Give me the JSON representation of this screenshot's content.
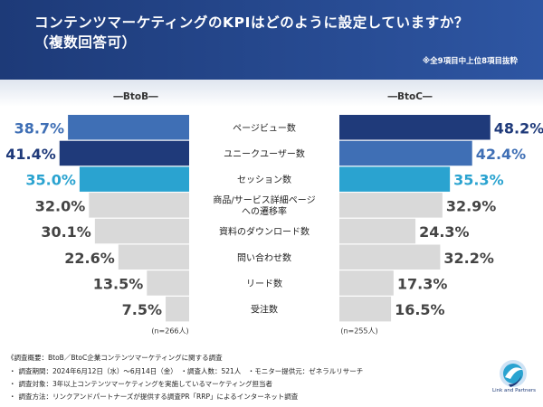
{
  "header": {
    "title_line1": "コンテンツマーケティングのKPIはどのように設定していますか？",
    "title_line2": "（複数回答可）",
    "note": "※全9項目中上位8項目抜粋"
  },
  "groups": {
    "btob_label": "―BtoB―",
    "btoc_label": "―BtoC―"
  },
  "chart_data": {
    "type": "bar",
    "orientation": "horizontal",
    "categories": [
      "ページビュー数",
      "ユニークユーザー数",
      "セッション数",
      "商品/サービス詳細ページへの遷移率",
      "資料のダウンロード数",
      "問い合わせ数",
      "リード数",
      "受注数"
    ],
    "category_lines": [
      [
        "ページビュー数"
      ],
      [
        "ユニークユーザー数"
      ],
      [
        "セッション数"
      ],
      [
        "商品/サービス詳細ページ",
        "への遷移率"
      ],
      [
        "資料のダウンロード数"
      ],
      [
        "問い合わせ数"
      ],
      [
        "リード数"
      ],
      [
        "受注数"
      ]
    ],
    "series": [
      {
        "name": "BtoB",
        "values": [
          38.7,
          41.4,
          35.0,
          32.0,
          30.1,
          22.6,
          13.5,
          7.5
        ],
        "labels": [
          "38.7%",
          "41.4%",
          "35.0%",
          "32.0%",
          "30.1%",
          "22.6%",
          "13.5%",
          "7.5%"
        ],
        "n_label": "(n=266人)"
      },
      {
        "name": "BtoC",
        "values": [
          48.2,
          42.4,
          35.3,
          32.9,
          24.3,
          32.2,
          17.3,
          16.5
        ],
        "labels": [
          "48.2%",
          "42.4%",
          "35.3%",
          "32.9%",
          "24.3%",
          "32.2%",
          "17.3%",
          "16.5%"
        ],
        "n_label": "(n=255人)"
      }
    ],
    "colors": {
      "rank1": "#1f3a7a",
      "rank2": "#3f6fb5",
      "rank3": "#2aa3d0",
      "other": "#d9d9d9",
      "other_label": "#444444"
    }
  },
  "footer": {
    "source": "《調査概要：BtoB／BtoC企業コンテンツマーケティングに関する調査",
    "lines": [
      "調査期間：2024年6月12日（水）〜6月14日（金）　・調査人数：521人　・モニター提供元：ゼネラルリサーチ",
      "調査対象：3年以上コンテンツマーケティングを実施しているマーケティング担当者",
      "調査方法：リンクアンドパートナーズが提供する調査PR「RRP」によるインターネット調査"
    ],
    "bullet": "・"
  },
  "logo": {
    "text": "Link and Partners"
  }
}
